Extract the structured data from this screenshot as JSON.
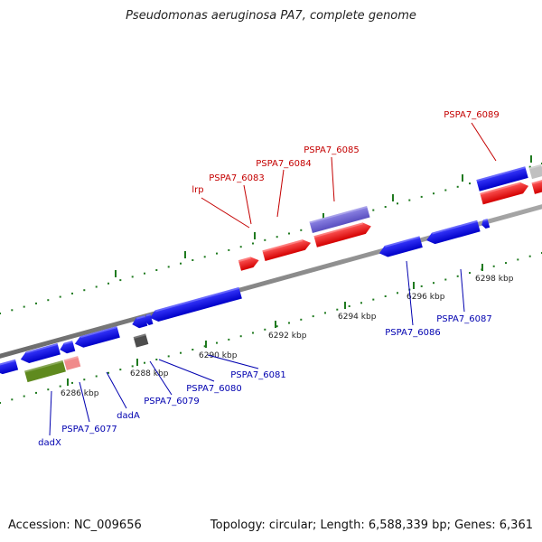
{
  "title": "Pseudomonas aeruginosa PA7, complete genome",
  "footer": {
    "accession": "Accession: NC_009656",
    "summary": "Topology: circular; Length: 6,588,339 bp; Genes: 6,361"
  },
  "colors": {
    "forward": "#ff0000",
    "reverse": "#0000ff",
    "pseudo_forward": "#6a5fd0",
    "other_forward": "#c0c0c0",
    "other_reverse": "#4d4d4d",
    "green": "#5f8a1e",
    "pink": "#f08a8a",
    "axis": "#808080",
    "tick_major": "#1f7a1f",
    "label_forward": "#c40000",
    "label_reverse": "#0000b0"
  },
  "ticks": [
    {
      "label": "6286 kbp"
    },
    {
      "label": "6288 kbp"
    },
    {
      "label": "6290 kbp"
    },
    {
      "label": "6292 kbp"
    },
    {
      "label": "6294 kbp"
    },
    {
      "label": "6296 kbp"
    },
    {
      "label": "6298 kbp"
    }
  ],
  "genes_forward": [
    {
      "name": "lrp"
    },
    {
      "name": "PSPA7_6083"
    },
    {
      "name": "PSPA7_6084"
    },
    {
      "name": "PSPA7_6085"
    },
    {
      "name": "PSPA7_6089"
    }
  ],
  "genes_reverse": [
    {
      "name": "dadX"
    },
    {
      "name": "PSPA7_6077"
    },
    {
      "name": "dadA"
    },
    {
      "name": "PSPA7_6079"
    },
    {
      "name": "PSPA7_6080"
    },
    {
      "name": "PSPA7_6081"
    },
    {
      "name": "PSPA7_6086"
    },
    {
      "name": "PSPA7_6087"
    }
  ]
}
